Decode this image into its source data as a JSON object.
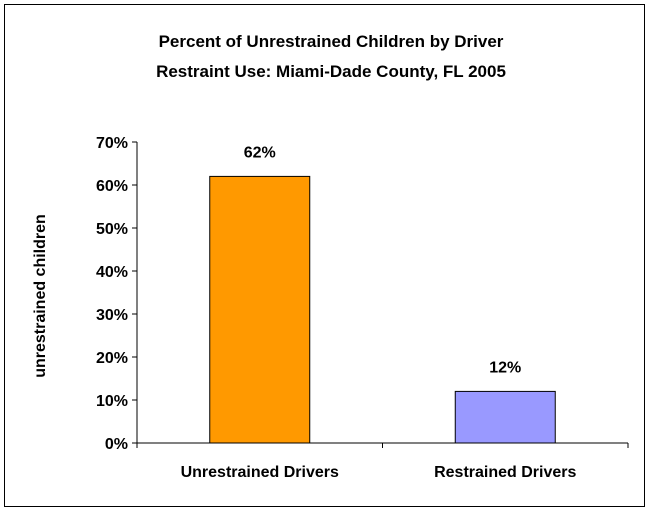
{
  "chart_data": {
    "type": "bar",
    "title_lines": [
      "Percent of Unrestrained Children by Driver",
      "Restraint Use: Miami-Dade County, FL 2005"
    ],
    "xlabel": "",
    "ylabel": "unrestrained children",
    "categories": [
      "Unrestrained Drivers",
      "Restrained Drivers"
    ],
    "values": [
      62,
      12
    ],
    "data_labels": [
      "62%",
      "12%"
    ],
    "ylim": [
      0,
      70
    ],
    "yticks": [
      0,
      10,
      20,
      30,
      40,
      50,
      60,
      70
    ],
    "ytick_labels": [
      "0%",
      "10%",
      "20%",
      "30%",
      "40%",
      "50%",
      "60%",
      "70%"
    ],
    "grid": false,
    "legend": "none",
    "colors": [
      "#FF9900",
      "#9999FF"
    ]
  }
}
